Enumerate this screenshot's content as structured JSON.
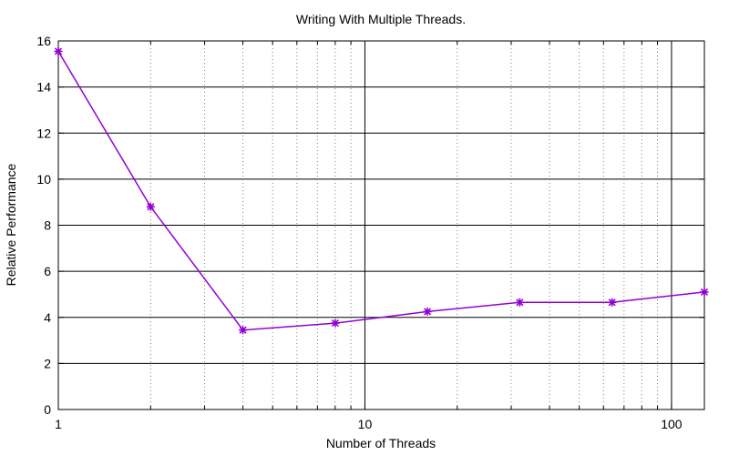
{
  "chart_data": {
    "type": "line",
    "title": "Writing With Multiple Threads.",
    "xlabel": "Number of Threads",
    "ylabel": "Relative Performance",
    "xscale": "log",
    "xlim": [
      1,
      128
    ],
    "ylim": [
      0,
      16
    ],
    "xticks": [
      {
        "value": 1,
        "label": "1"
      },
      {
        "value": 10,
        "label": "10"
      },
      {
        "value": 100,
        "label": "100"
      }
    ],
    "yticks": [
      {
        "value": 0,
        "label": "0"
      },
      {
        "value": 2,
        "label": "2"
      },
      {
        "value": 4,
        "label": "4"
      },
      {
        "value": 6,
        "label": "6"
      },
      {
        "value": 8,
        "label": "8"
      },
      {
        "value": 10,
        "label": "10"
      },
      {
        "value": 12,
        "label": "12"
      },
      {
        "value": 14,
        "label": "14"
      },
      {
        "value": 16,
        "label": "16"
      }
    ],
    "grid": true,
    "legend": "none",
    "series": [
      {
        "color": "#9400d3",
        "marker": "asterisk",
        "x": [
          1,
          2,
          4,
          8,
          16,
          32,
          64,
          128
        ],
        "values": [
          15.55,
          8.8,
          3.45,
          3.75,
          4.25,
          4.65,
          4.65,
          5.1
        ]
      }
    ]
  }
}
